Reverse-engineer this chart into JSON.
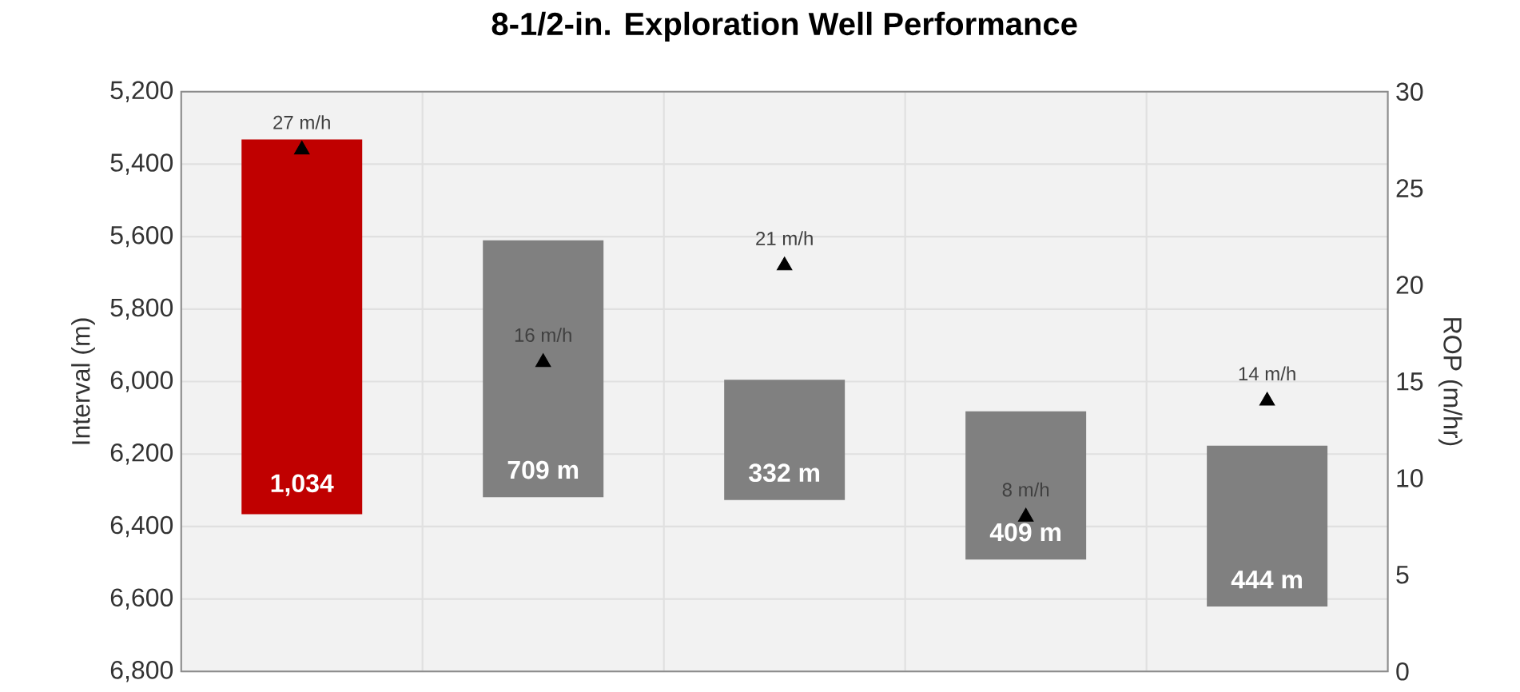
{
  "chart_data": {
    "type": "bar",
    "title": "8-1/2-in. Exploration Well Performance",
    "ylabel": "Interval (m)",
    "y2label": "ROP (m/hr)",
    "categories": [
      null,
      null,
      null,
      null,
      null
    ],
    "series": [
      {
        "axis": "y",
        "colors": [
          "#c00000",
          "#808080",
          "#808080",
          "#808080",
          "#808080"
        ],
        "base": [
          5332,
          5610,
          5995,
          6082,
          6177
        ],
        "values": [
          1034,
          709,
          332,
          409,
          444
        ],
        "value_labels": [
          "1,034",
          "709 m",
          "332 m",
          "409 m",
          "444 m"
        ]
      },
      {
        "type": "scatter",
        "axis": "y2",
        "color": "#000000",
        "marker": "triangle",
        "values": [
          27,
          16,
          21,
          8,
          14
        ],
        "value_labels": [
          "27 m/h",
          "16 m/h",
          "21 m/h",
          "8 m/h",
          "14 m/h"
        ]
      }
    ],
    "ylim": [
      6800,
      5200
    ],
    "yticks": [
      {
        "value": 5200,
        "label": "5,200"
      },
      {
        "value": 5400,
        "label": "5,400"
      },
      {
        "value": 5600,
        "label": "5,600"
      },
      {
        "value": 5800,
        "label": "5,800"
      },
      {
        "value": 6000,
        "label": "6,000"
      },
      {
        "value": 6200,
        "label": "6,200"
      },
      {
        "value": 6400,
        "label": "6,400"
      },
      {
        "value": 6600,
        "label": "6,600"
      },
      {
        "value": 6800,
        "label": "6,800"
      }
    ],
    "y2lim": [
      0,
      30
    ],
    "y2ticks": [
      0,
      5,
      10,
      15,
      20,
      25,
      30
    ],
    "grid": true,
    "tick_labels": "y"
  }
}
